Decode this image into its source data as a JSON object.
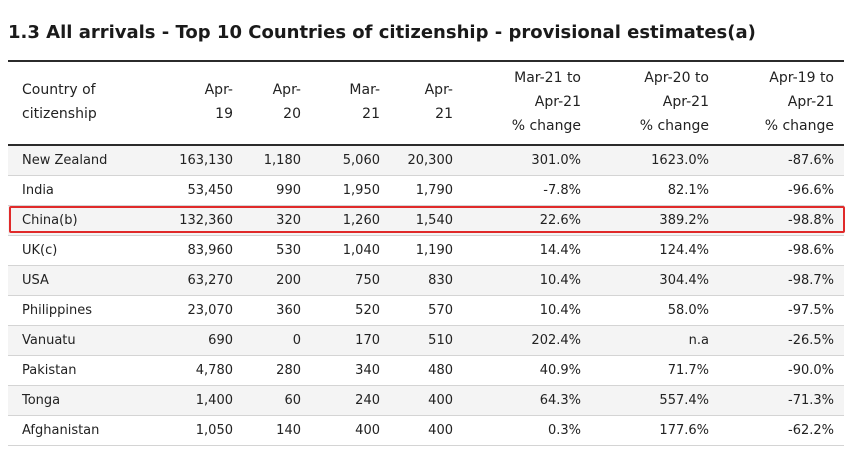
{
  "title": "1.3 All arrivals - Top 10 Countries of citizenship - provisional estimates(a)",
  "columns": [
    {
      "lines": [
        "Country of",
        "citizenship"
      ]
    },
    {
      "lines": [
        "Apr-",
        "19"
      ]
    },
    {
      "lines": [
        "Apr-",
        "20"
      ]
    },
    {
      "lines": [
        "Mar-",
        "21"
      ]
    },
    {
      "lines": [
        "Apr-",
        "21"
      ]
    },
    {
      "lines": [
        "Mar-21 to",
        "Apr-21",
        "% change"
      ]
    },
    {
      "lines": [
        "Apr-20 to",
        "Apr-21",
        "% change"
      ]
    },
    {
      "lines": [
        "Apr-19 to",
        "Apr-21",
        "% change"
      ]
    }
  ],
  "rows": [
    [
      "New Zealand",
      "163,130",
      "1,180",
      "5,060",
      "20,300",
      "301.0%",
      "1623.0%",
      "-87.6%"
    ],
    [
      "India",
      "53,450",
      "990",
      "1,950",
      "1,790",
      "-7.8%",
      "82.1%",
      "-96.6%"
    ],
    [
      "China(b)",
      "132,360",
      "320",
      "1,260",
      "1,540",
      "22.6%",
      "389.2%",
      "-98.8%"
    ],
    [
      "UK(c)",
      "83,960",
      "530",
      "1,040",
      "1,190",
      "14.4%",
      "124.4%",
      "-98.6%"
    ],
    [
      "USA",
      "63,270",
      "200",
      "750",
      "830",
      "10.4%",
      "304.4%",
      "-98.7%"
    ],
    [
      "Philippines",
      "23,070",
      "360",
      "520",
      "570",
      "10.4%",
      "58.0%",
      "-97.5%"
    ],
    [
      "Vanuatu",
      "690",
      "0",
      "170",
      "510",
      "202.4%",
      "n.a",
      "-26.5%"
    ],
    [
      "Pakistan",
      "4,780",
      "280",
      "340",
      "480",
      "40.9%",
      "71.7%",
      "-90.0%"
    ],
    [
      "Tonga",
      "1,400",
      "60",
      "240",
      "400",
      "64.3%",
      "557.4%",
      "-71.3%"
    ],
    [
      "Afghanistan",
      "1,050",
      "140",
      "400",
      "400",
      "0.3%",
      "177.6%",
      "-62.2%"
    ]
  ],
  "highlight_color": "#e02a2a"
}
